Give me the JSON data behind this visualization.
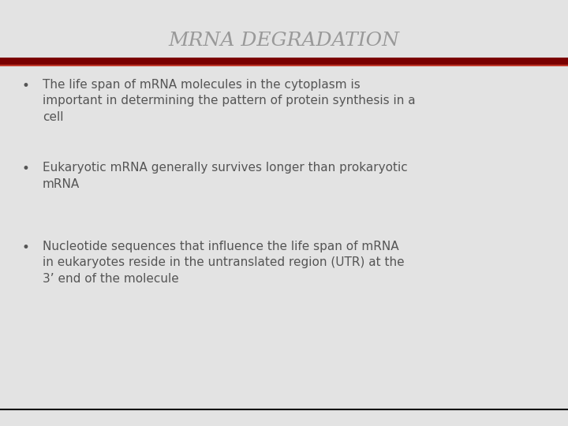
{
  "title": "MRNA DEGRADATION",
  "title_color": "#999999",
  "title_fontsize": 18,
  "title_style": "italic",
  "title_family": "serif",
  "background_color": "#e3e3e3",
  "bar_color_dark": "#7a0000",
  "bar_color_thin": "#c0392b",
  "bottom_line_color": "#111111",
  "bullet_color": "#555555",
  "text_color": "#555555",
  "bullet_char": "•",
  "bullets": [
    "The life span of mRNA molecules in the cytoplasm is\nimportant in determining the pattern of protein synthesis in a\ncell",
    "Eukaryotic mRNA generally survives longer than prokaryotic\nmRNA",
    "Nucleotide sequences that influence the life span of mRNA\nin eukaryotes reside in the untranslated region (UTR) at the\n3’ end of the molecule"
  ],
  "bullet_fontsize": 11,
  "fig_width": 7.2,
  "fig_height": 5.4,
  "fig_dpi": 100
}
